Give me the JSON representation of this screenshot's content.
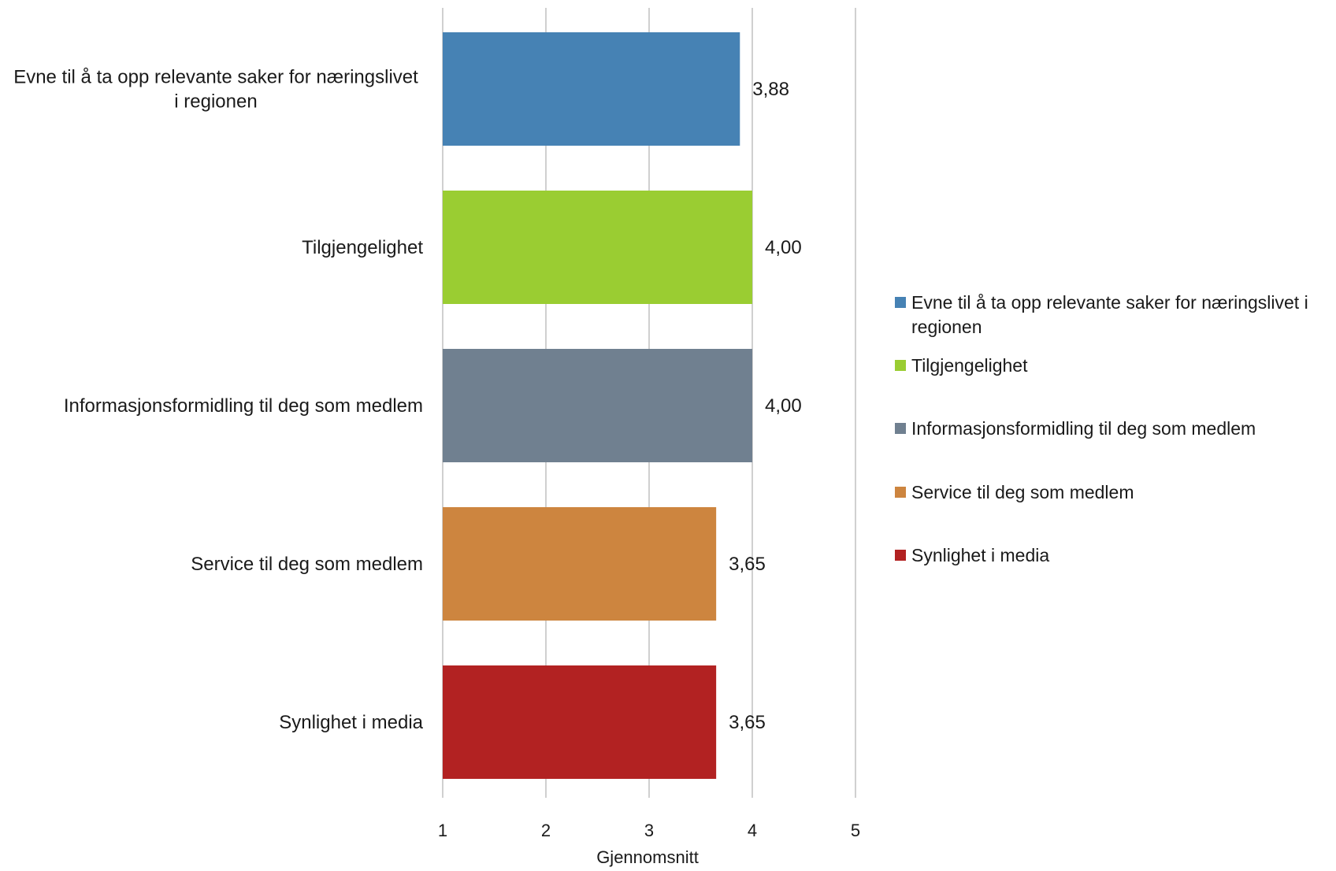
{
  "chart_data": {
    "type": "bar",
    "orientation": "horizontal",
    "categories": [
      "Evne til å ta opp relevante saker for næringslivet i regionen",
      "Tilgjengelighet",
      "Informasjonsformidling til deg som medlem",
      "Service til deg som medlem",
      "Synlighet i media"
    ],
    "category_label_lines": [
      [
        "Evne til å ta opp relevante saker for næringslivet",
        "i regionen"
      ],
      [
        "Tilgjengelighet"
      ],
      [
        "Informasjonsformidling til deg som medlem"
      ],
      [
        "Service til deg som medlem"
      ],
      [
        "Synlighet i media"
      ]
    ],
    "values": [
      3.88,
      4.0,
      4.0,
      3.65,
      3.65
    ],
    "value_labels": [
      "3,88",
      "4,00",
      "4,00",
      "3,65",
      "3,65"
    ],
    "colors": [
      "#4682b4",
      "#9acd32",
      "#708090",
      "#cd853f",
      "#b22222"
    ],
    "xlim": [
      1,
      5
    ],
    "x_ticks": [
      1,
      2,
      3,
      4,
      5
    ],
    "x_tick_labels": [
      "1",
      "2",
      "3",
      "4",
      "5"
    ],
    "xlabel": "Gjennomsnitt",
    "ylabel": "",
    "title": "",
    "grid": "vertical",
    "legend": {
      "position": "right",
      "entries": [
        {
          "lines": [
            "Evne til å ta opp relevante saker for næringslivet i",
            "regionen"
          ],
          "color": "#4682b4"
        },
        {
          "lines": [
            "Tilgjengelighet"
          ],
          "color": "#9acd32"
        },
        {
          "lines": [
            "Informasjonsformidling til deg som medlem"
          ],
          "color": "#708090"
        },
        {
          "lines": [
            "Service til deg som medlem"
          ],
          "color": "#cd853f"
        },
        {
          "lines": [
            "Synlighet i media"
          ],
          "color": "#b22222"
        }
      ]
    }
  }
}
